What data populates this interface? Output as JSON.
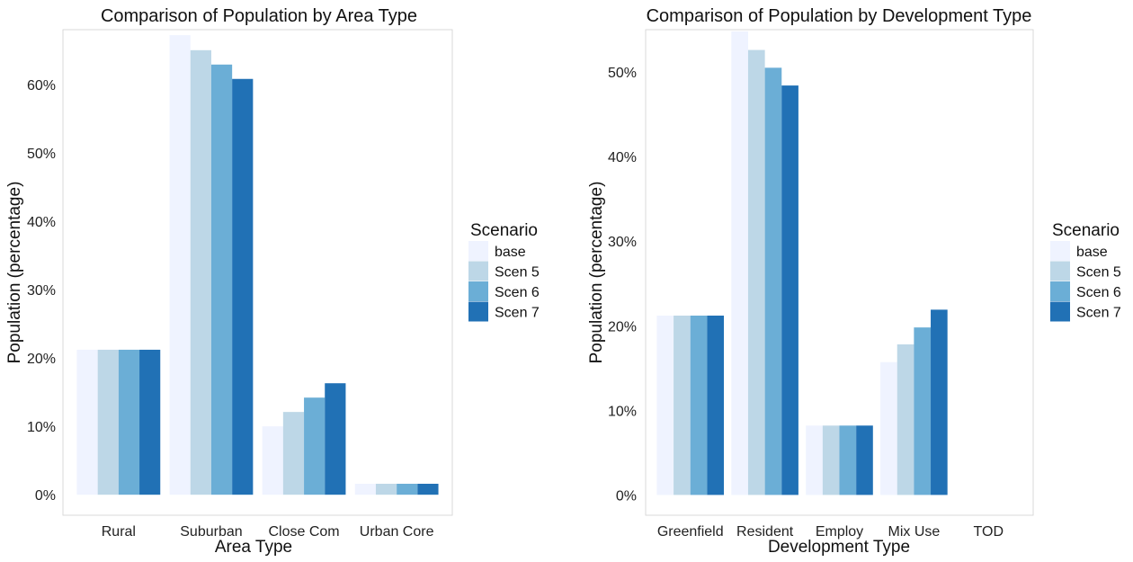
{
  "colors": {
    "scenario": [
      "#eff3ff",
      "#bdd7e7",
      "#6baed6",
      "#2171b5"
    ],
    "panel_border": "#d9d9d9",
    "background": "#ffffff"
  },
  "chart_data": [
    {
      "type": "bar",
      "title": "Comparison of Population by Area Type",
      "xlabel": "Area Type",
      "ylabel": "Population (percentage)",
      "categories": [
        "Rural",
        "Suburban",
        "Close Com",
        "Urban Core"
      ],
      "yticks": [
        "0%",
        "10%",
        "20%",
        "30%",
        "40%",
        "50%",
        "60%"
      ],
      "ylim": [
        -3,
        68
      ],
      "grid": false,
      "legend": {
        "title": "Scenario",
        "placement": "right"
      },
      "series": [
        {
          "name": "base",
          "values": [
            21.2,
            67.2,
            10.0,
            1.6
          ]
        },
        {
          "name": "Scen 5",
          "values": [
            21.2,
            65.0,
            12.1,
            1.6
          ]
        },
        {
          "name": "Scen 6",
          "values": [
            21.2,
            62.9,
            14.2,
            1.6
          ]
        },
        {
          "name": "Scen 7",
          "values": [
            21.2,
            60.8,
            16.3,
            1.6
          ]
        }
      ]
    },
    {
      "type": "bar",
      "title": "Comparison of Population by Development Type",
      "xlabel": "Development Type",
      "ylabel": "Population (percentage)",
      "categories": [
        "Greenfield",
        "Resident",
        "Employ",
        "Mix Use",
        "TOD"
      ],
      "yticks": [
        "0%",
        "10%",
        "20%",
        "30%",
        "40%",
        "50%"
      ],
      "ylim": [
        -2.4,
        55
      ],
      "grid": false,
      "legend": {
        "title": "Scenario",
        "placement": "right"
      },
      "series": [
        {
          "name": "base",
          "values": [
            21.2,
            54.8,
            8.2,
            15.7,
            0
          ]
        },
        {
          "name": "Scen 5",
          "values": [
            21.2,
            52.6,
            8.2,
            17.8,
            0
          ]
        },
        {
          "name": "Scen 6",
          "values": [
            21.2,
            50.5,
            8.2,
            19.8,
            0
          ]
        },
        {
          "name": "Scen 7",
          "values": [
            21.2,
            48.4,
            8.2,
            21.9,
            0
          ]
        }
      ]
    }
  ]
}
